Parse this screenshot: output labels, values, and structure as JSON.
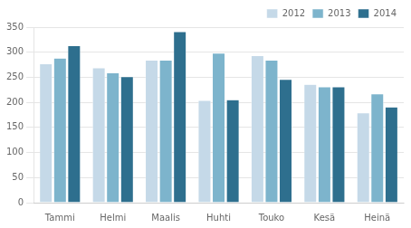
{
  "chart_data": {
    "type": "bar",
    "categories": [
      "Tammi",
      "Helmi",
      "Maalis",
      "Huhti",
      "Touko",
      "Kesä",
      "Heinä"
    ],
    "series": [
      {
        "name": "2012",
        "color": "#c5d9e8",
        "values": [
          277,
          269,
          284,
          204,
          293,
          236,
          179
        ]
      },
      {
        "name": "2013",
        "color": "#7db4cc",
        "values": [
          288,
          259,
          284,
          298,
          284,
          231,
          217
        ]
      },
      {
        "name": "2014",
        "color": "#2e6f8e",
        "values": [
          313,
          251,
          341,
          205,
          246,
          231,
          191
        ]
      }
    ],
    "ylim": [
      0,
      350
    ],
    "yticks": [
      0,
      50,
      100,
      150,
      200,
      250,
      300,
      350
    ],
    "grid": true,
    "legend": "upper right"
  }
}
